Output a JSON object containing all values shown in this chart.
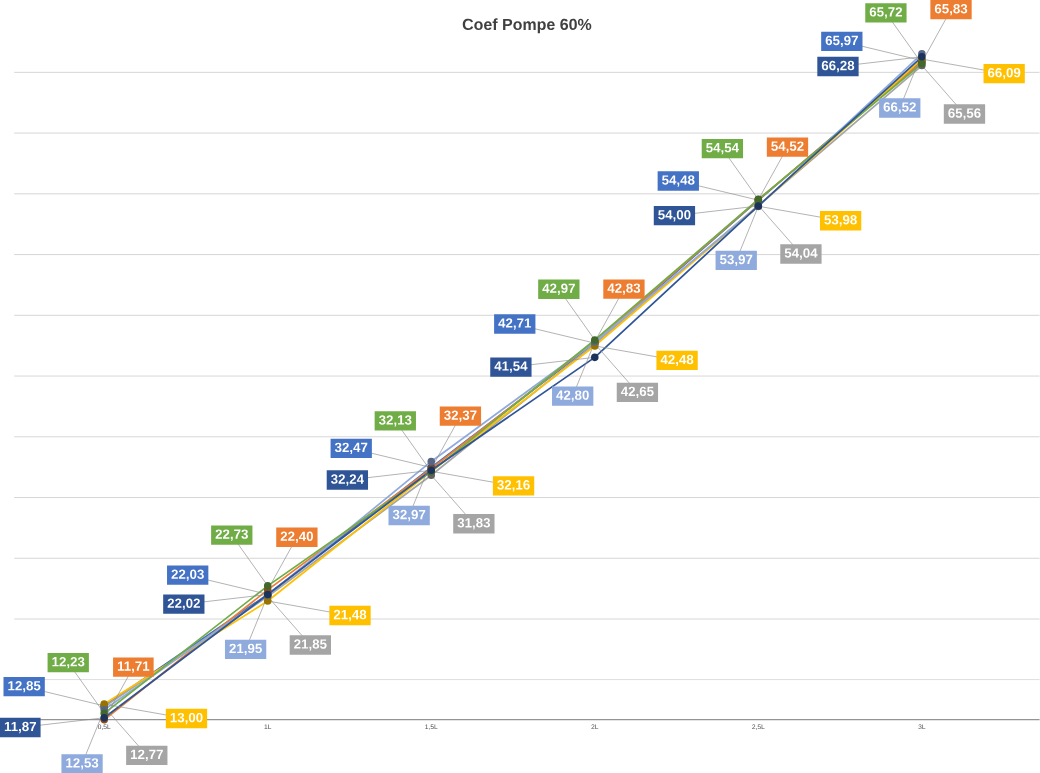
{
  "chart_data": {
    "type": "line",
    "title": "Coef Pompe 60%",
    "categories": [
      "0,5L",
      "1L",
      "1,5L",
      "2L",
      "2,5L",
      "3L"
    ],
    "tick_labels": "x",
    "grid": "y",
    "marker": "circle",
    "line_style": "solid",
    "series": [
      {
        "color": "#4472c4",
        "values": [
          12.85,
          22.03,
          32.47,
          42.71,
          54.48,
          65.97
        ],
        "value_labels": [
          "12,85",
          "22,03",
          "32,47",
          "42,71",
          "54,48",
          "65,97"
        ]
      },
      {
        "color": "#ed7d31",
        "values": [
          11.71,
          22.4,
          32.37,
          42.83,
          54.52,
          65.83
        ],
        "value_labels": [
          "11,71",
          "22,40",
          "32,37",
          "42,83",
          "54,52",
          "65,83"
        ]
      },
      {
        "color": "#a5a5a5",
        "values": [
          12.77,
          21.85,
          31.83,
          42.65,
          54.04,
          65.56
        ],
        "value_labels": [
          "12,77",
          "21,85",
          "31,83",
          "42,65",
          "54,04",
          "65,56"
        ]
      },
      {
        "color": "#ffc000",
        "values": [
          13.0,
          21.48,
          32.16,
          42.48,
          53.98,
          66.09
        ],
        "value_labels": [
          "13,00",
          "21,48",
          "32,16",
          "42,48",
          "53,98",
          "66,09"
        ]
      },
      {
        "color": "#8faadc",
        "values": [
          12.53,
          21.95,
          32.97,
          42.8,
          53.97,
          66.52
        ],
        "value_labels": [
          "12,53",
          "21,95",
          "32,97",
          "42,80",
          "53,97",
          "66,52"
        ]
      },
      {
        "color": "#70ad47",
        "values": [
          12.23,
          22.73,
          32.13,
          42.97,
          54.54,
          65.72
        ],
        "value_labels": [
          "12,23",
          "22,73",
          "32,13",
          "42,97",
          "54,54",
          "65,72"
        ]
      },
      {
        "color": "#2f5597",
        "values": [
          11.87,
          22.02,
          32.24,
          41.54,
          54.0,
          66.28
        ],
        "value_labels": [
          "11,87",
          "22,02",
          "32,24",
          "41,54",
          "54,00",
          "66,28"
        ]
      }
    ]
  }
}
